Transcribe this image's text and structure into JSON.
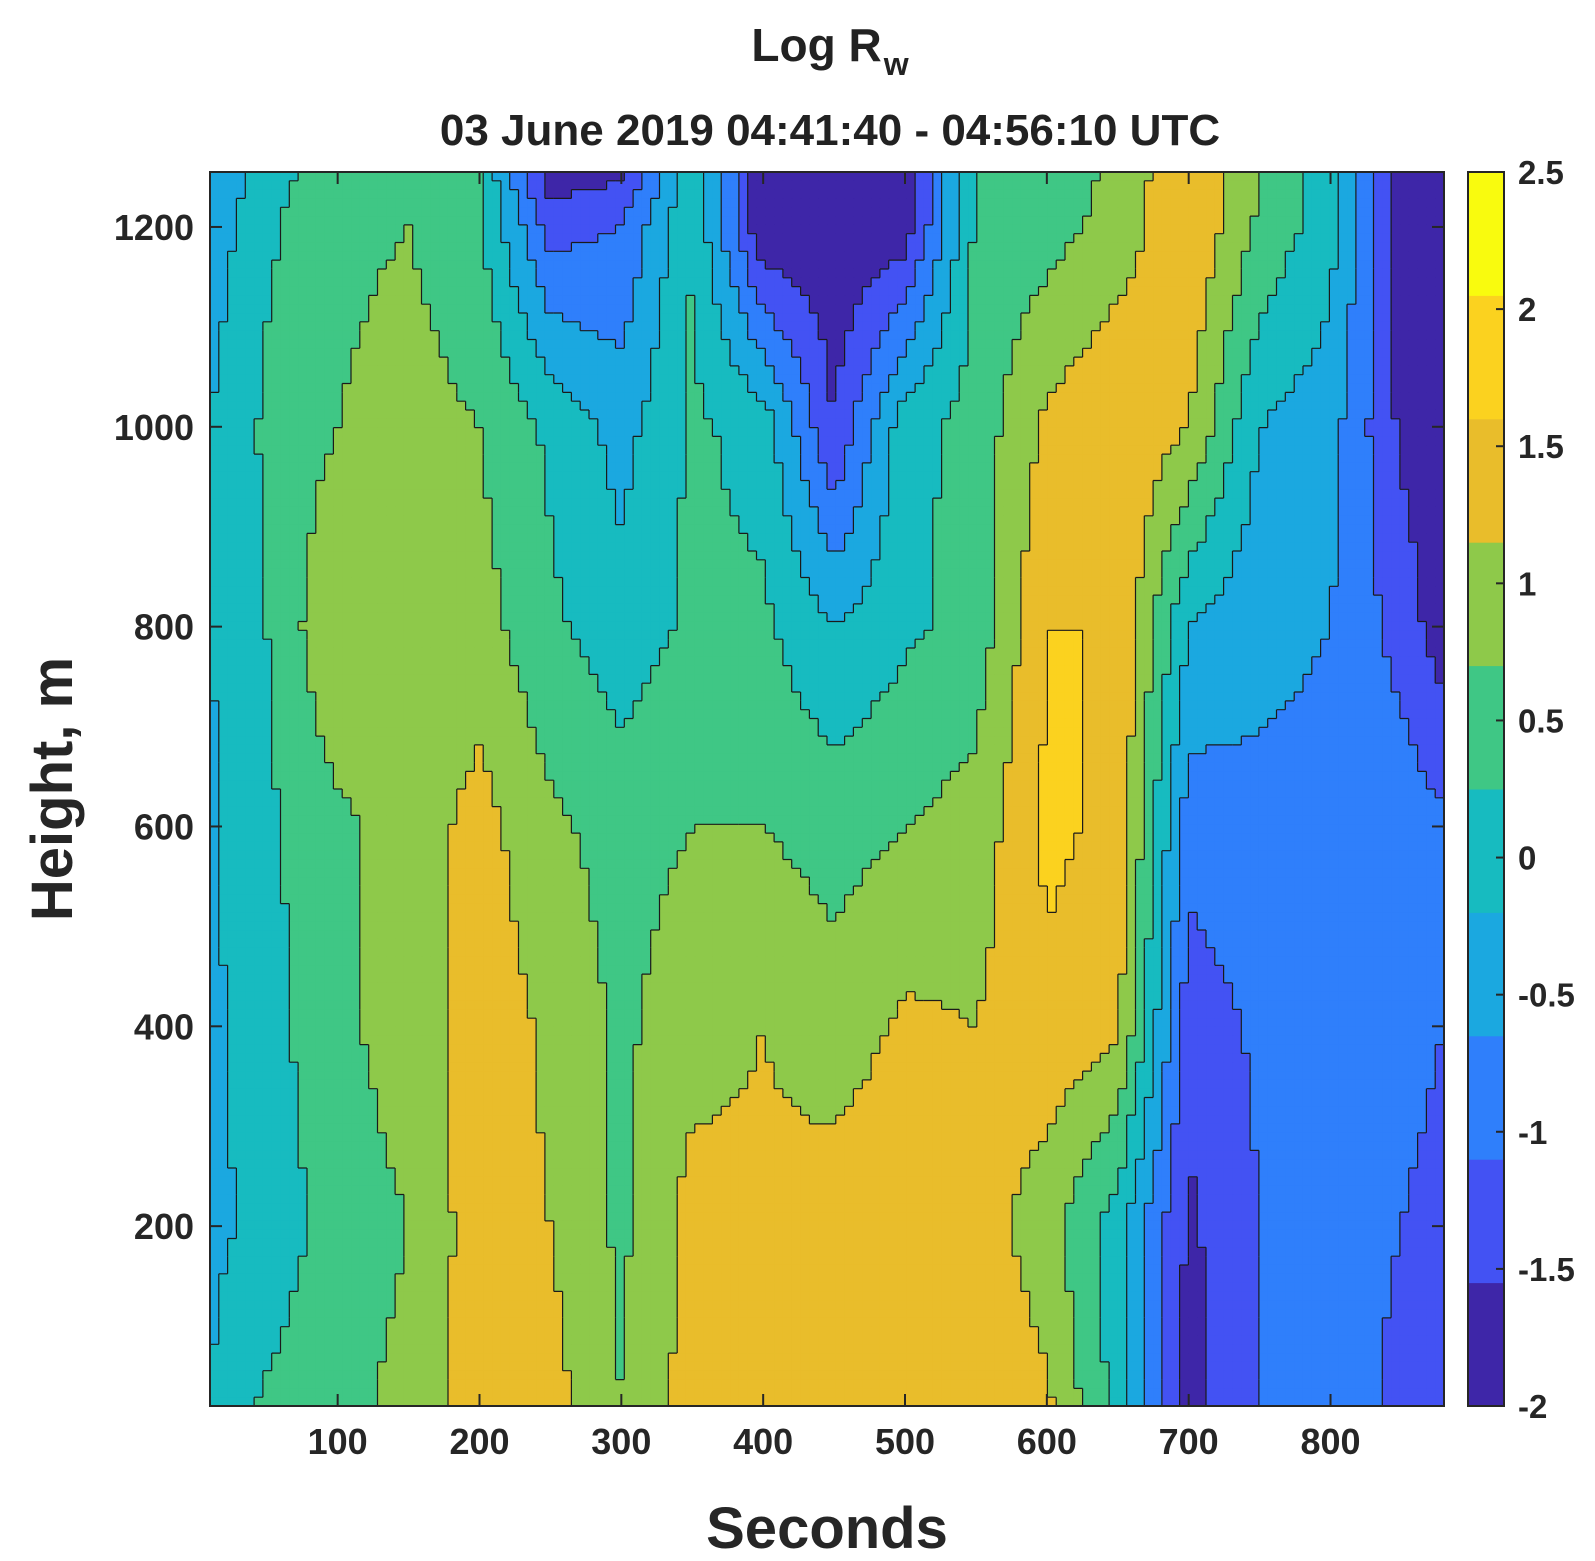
{
  "chart_data": {
    "type": "heatmap",
    "title_base": "Log R",
    "title_subscript": "w",
    "subtitle": "03 June 2019 04:41:40 - 04:56:10 UTC",
    "xlabel": "Seconds",
    "ylabel": "Height, m",
    "xlim": [
      10,
      880
    ],
    "ylim": [
      20,
      1255
    ],
    "x_ticks": [
      {
        "value": 100,
        "label": "100"
      },
      {
        "value": 200,
        "label": "200"
      },
      {
        "value": 300,
        "label": "300"
      },
      {
        "value": 400,
        "label": "400"
      },
      {
        "value": 500,
        "label": "500"
      },
      {
        "value": 600,
        "label": "600"
      },
      {
        "value": 700,
        "label": "700"
      },
      {
        "value": 800,
        "label": "800"
      }
    ],
    "y_ticks": [
      {
        "value": 200,
        "label": "200"
      },
      {
        "value": 400,
        "label": "400"
      },
      {
        "value": 600,
        "label": "600"
      },
      {
        "value": 800,
        "label": "800"
      },
      {
        "value": 1000,
        "label": "1000"
      },
      {
        "value": 1200,
        "label": "1200"
      }
    ],
    "colorbar": {
      "min": -2,
      "max": 2.5,
      "ticks": [
        {
          "value": 2.5,
          "label": "2.5"
        },
        {
          "value": 2,
          "label": "2"
        },
        {
          "value": 1.5,
          "label": "1.5"
        },
        {
          "value": 1,
          "label": "1"
        },
        {
          "value": 0.5,
          "label": "0.5"
        },
        {
          "value": 0,
          "label": "0"
        },
        {
          "value": -0.5,
          "label": "-0.5"
        },
        {
          "value": -1,
          "label": "-1"
        },
        {
          "value": -1.5,
          "label": "-1.5"
        },
        {
          "value": -2,
          "label": "-2"
        }
      ],
      "colormap": [
        "#3e26a8",
        "#4352f3",
        "#2f7ffb",
        "#1ba8e0",
        "#17bbc0",
        "#3fc785",
        "#8ec94a",
        "#e9bd2b",
        "#fbd21f",
        "#f9fb0e"
      ]
    },
    "contour_interval": 0.5,
    "field_description_points": {
      "comment_free": true,
      "x": [
        10,
        50,
        100,
        150,
        200,
        250,
        300,
        350,
        400,
        450,
        500,
        550,
        600,
        650,
        700,
        750,
        800,
        850,
        880
      ],
      "y": [
        20,
        200,
        400,
        600,
        800,
        1000,
        1200,
        1255
      ],
      "z": [
        [
          0.0,
          0.6,
          0.9,
          1.1,
          1.8,
          1.7,
          1.0,
          1.7,
          1.6,
          1.8,
          2.0,
          1.9,
          1.6,
          0.3,
          -1.7,
          -1.0,
          -0.8,
          -1.1,
          -1.3
        ],
        [
          -0.1,
          0.1,
          0.8,
          1.0,
          1.8,
          1.5,
          0.9,
          1.7,
          1.6,
          1.8,
          1.9,
          1.8,
          1.2,
          0.2,
          -1.6,
          -1.0,
          -0.8,
          -1.0,
          -1.2
        ],
        [
          -0.1,
          0.3,
          0.9,
          1.2,
          1.8,
          1.4,
          0.9,
          1.3,
          1.5,
          1.2,
          1.6,
          1.5,
          1.9,
          1.6,
          -1.3,
          -0.9,
          -0.7,
          -0.8,
          -1.0
        ],
        [
          -0.1,
          0.4,
          0.9,
          1.2,
          1.7,
          1.1,
          0.8,
          1.0,
          1.0,
          0.8,
          1.0,
          1.2,
          2.1,
          1.9,
          -0.8,
          -0.6,
          -0.6,
          -0.7,
          -0.9
        ],
        [
          0.0,
          0.5,
          1.5,
          1.0,
          1.2,
          0.6,
          0.2,
          0.6,
          0.6,
          0.0,
          0.4,
          0.7,
          2.0,
          2.0,
          0.0,
          -0.4,
          -0.5,
          -1.2,
          -1.8
        ],
        [
          0.0,
          0.6,
          1.0,
          1.2,
          1.0,
          0.4,
          -0.2,
          0.6,
          0.3,
          -1.5,
          0.3,
          0.7,
          1.6,
          2.0,
          1.5,
          0.0,
          -0.3,
          -1.6,
          -1.9
        ],
        [
          -0.3,
          0.4,
          0.9,
          1.0,
          0.6,
          -1.2,
          -1.0,
          0.5,
          -1.9,
          -1.9,
          -1.8,
          0.6,
          0.8,
          1.2,
          2.0,
          0.9,
          0.2,
          -1.8,
          -1.9
        ],
        [
          -0.5,
          0.3,
          0.8,
          0.9,
          0.5,
          -1.8,
          -1.6,
          0.4,
          -1.9,
          -1.9,
          -1.8,
          0.5,
          0.7,
          1.1,
          2.0,
          1.0,
          0.1,
          -1.9,
          -1.9
        ]
      ]
    }
  }
}
